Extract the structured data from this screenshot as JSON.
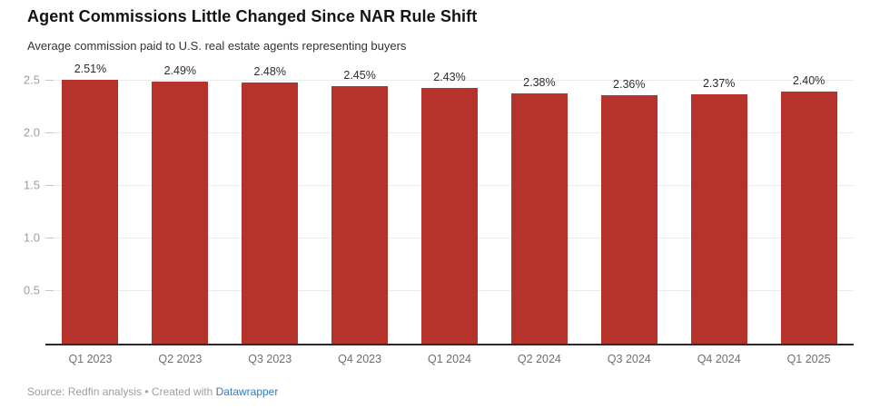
{
  "header": {
    "title": "Agent Commissions Little Changed Since NAR Rule Shift",
    "subtitle": "Average commission paid to U.S. real estate agents representing buyers"
  },
  "chart_data": {
    "type": "bar",
    "title": "Agent Commissions Little Changed Since NAR Rule Shift",
    "subtitle": "Average commission paid to U.S. real estate agents representing buyers",
    "categories": [
      "Q1 2023",
      "Q2 2023",
      "Q3 2023",
      "Q4 2023",
      "Q1 2024",
      "Q2 2024",
      "Q3 2024",
      "Q4 2024",
      "Q1 2025"
    ],
    "values": [
      2.51,
      2.49,
      2.48,
      2.45,
      2.43,
      2.38,
      2.36,
      2.37,
      2.4
    ],
    "value_labels": [
      "2.51%",
      "2.49%",
      "2.48%",
      "2.45%",
      "2.43%",
      "2.38%",
      "2.36%",
      "2.37%",
      "2.40%"
    ],
    "xlabel": "",
    "ylabel": "",
    "ylim": [
      0,
      2.5
    ],
    "yticks": [
      0.5,
      1.0,
      1.5,
      2.0,
      2.5
    ],
    "ytick_labels": [
      "0.5",
      "1.0",
      "1.5",
      "2.0",
      "2.5"
    ],
    "grid": "horizontal-only",
    "legend": "none",
    "bar_color": "#b5332a"
  },
  "footer": {
    "source_prefix": "Source: Redfin analysis • Created with ",
    "link_label": "Datawrapper",
    "link_color": "#2e7cc4"
  },
  "colors": {
    "background": "#ffffff",
    "bar": "#b5332a",
    "title_text": "#141414",
    "subtitle_text": "#333333",
    "value_label_text": "#2b2b2b",
    "ytick_text": "#9d9d9d",
    "xtick_text": "#6f6f6f",
    "gridline": "#ebebeb",
    "baseline": "#2b2b2b",
    "footer_text": "#9e9e9e",
    "link": "#2e7cc4"
  }
}
